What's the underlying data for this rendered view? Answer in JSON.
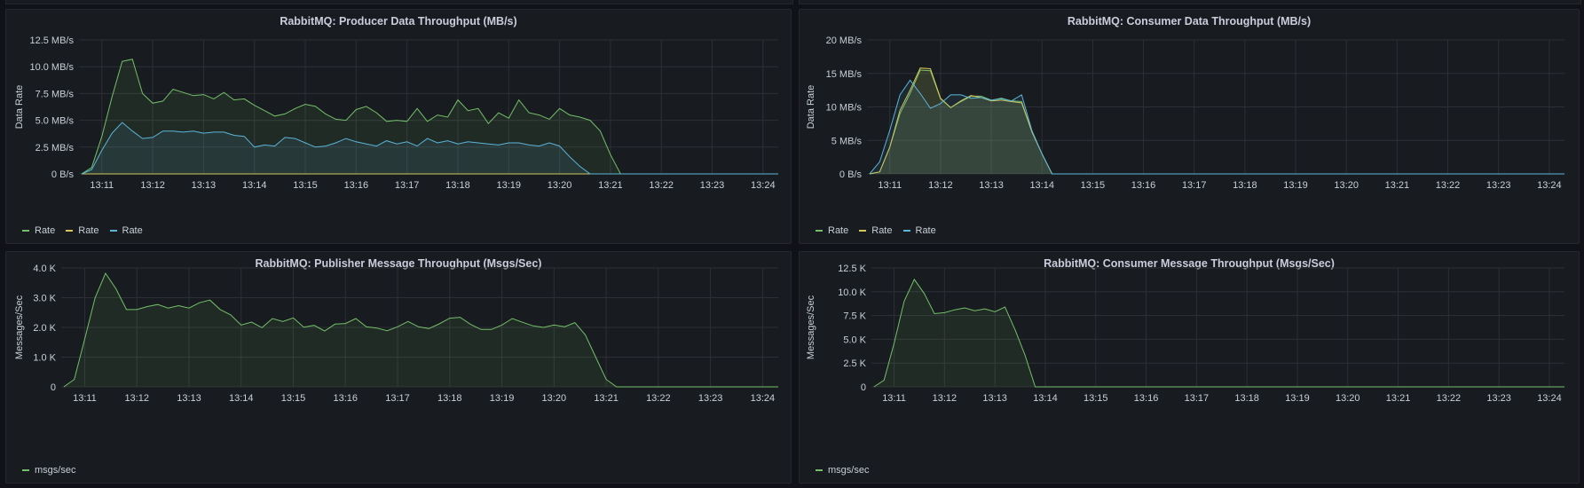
{
  "colors": {
    "green": "#73bf69",
    "yellow": "#d6c75a",
    "blue": "#5bb5d9",
    "grid": "#2c3036"
  },
  "chart_data": [
    {
      "id": "producer",
      "type": "area",
      "title": "RabbitMQ: Producer Data Throughput (MB/s)",
      "ylabel": "Data Rate",
      "yticks": [
        "0 B/s",
        "2.5 MB/s",
        "5.0 MB/s",
        "7.5 MB/s",
        "10.0 MB/s",
        "12.5 MB/s"
      ],
      "ylim": [
        0,
        12.5
      ],
      "xticks": [
        "13:11",
        "13:12",
        "13:13",
        "13:14",
        "13:15",
        "13:16",
        "13:17",
        "13:18",
        "13:19",
        "13:20",
        "13:21",
        "13:22",
        "13:23",
        "13:24"
      ],
      "xlim": [
        10.55,
        24.3
      ],
      "x": [
        10.6,
        10.8,
        11.0,
        11.2,
        11.4,
        11.6,
        11.8,
        12.0,
        12.2,
        12.4,
        12.6,
        12.8,
        13.0,
        13.2,
        13.4,
        13.6,
        13.8,
        14.0,
        14.2,
        14.4,
        14.6,
        14.8,
        15.0,
        15.2,
        15.4,
        15.6,
        15.8,
        16.0,
        16.2,
        16.4,
        16.6,
        16.8,
        17.0,
        17.2,
        17.4,
        17.6,
        17.8,
        18.0,
        18.2,
        18.4,
        18.6,
        18.8,
        19.0,
        19.2,
        19.4,
        19.6,
        19.8,
        20.0,
        20.2,
        20.4,
        20.6,
        20.8,
        21.0,
        21.2,
        21.4,
        21.6,
        21.8,
        22.0,
        22.2,
        22.4,
        22.6,
        22.8,
        23.0,
        23.2,
        23.4,
        23.6,
        23.8,
        24.0,
        24.3
      ],
      "series": [
        {
          "name": "Rate",
          "color": "#73bf69",
          "values": [
            0,
            0.6,
            3.5,
            7.2,
            10.5,
            10.7,
            7.5,
            6.6,
            6.8,
            7.9,
            7.6,
            7.3,
            7.4,
            7.0,
            7.6,
            6.9,
            7.0,
            6.4,
            5.9,
            5.4,
            5.6,
            6.1,
            6.5,
            6.3,
            5.6,
            5.1,
            5.0,
            6.0,
            6.3,
            5.7,
            4.9,
            5.0,
            4.9,
            6.1,
            4.9,
            5.5,
            5.3,
            6.9,
            5.9,
            6.1,
            4.7,
            5.7,
            5.2,
            6.9,
            5.7,
            5.5,
            5.1,
            6.1,
            5.5,
            5.3,
            5.0,
            4.0,
            1.8,
            0,
            0,
            0,
            0,
            0,
            0,
            0,
            0,
            0,
            0,
            0,
            0,
            0,
            0,
            0,
            0
          ]
        },
        {
          "name": "Rate",
          "color": "#d6c75a",
          "values": [
            0,
            0,
            0,
            0,
            0,
            0,
            0,
            0,
            0,
            0,
            0,
            0,
            0,
            0,
            0,
            0,
            0,
            0,
            0,
            0,
            0,
            0,
            0,
            0,
            0,
            0,
            0,
            0,
            0,
            0,
            0,
            0,
            0,
            0,
            0,
            0,
            0,
            0,
            0,
            0,
            0,
            0,
            0,
            0,
            0,
            0,
            0,
            0,
            0,
            0,
            0,
            0,
            0,
            0,
            0,
            0,
            0,
            0,
            0,
            0,
            0,
            0,
            0,
            0,
            0,
            0,
            0,
            0,
            0
          ]
        },
        {
          "name": "Rate",
          "color": "#5bb5d9",
          "values": [
            0,
            0.4,
            2.2,
            3.8,
            4.8,
            4.0,
            3.3,
            3.4,
            4.0,
            4.0,
            3.9,
            4.0,
            3.8,
            3.9,
            3.9,
            3.6,
            3.5,
            2.5,
            2.7,
            2.6,
            3.4,
            3.3,
            2.9,
            2.5,
            2.6,
            2.9,
            3.3,
            3.0,
            2.8,
            2.6,
            3.1,
            2.8,
            3.0,
            2.6,
            3.3,
            2.9,
            3.1,
            2.8,
            3.0,
            2.9,
            2.8,
            2.7,
            2.9,
            2.9,
            2.7,
            2.6,
            2.9,
            2.6,
            1.6,
            0.7,
            0,
            0,
            0,
            0,
            0,
            0,
            0,
            0,
            0,
            0,
            0,
            0,
            0,
            0,
            0,
            0,
            0,
            0,
            0
          ]
        }
      ],
      "legend": [
        "Rate",
        "Rate",
        "Rate"
      ],
      "grid": true
    },
    {
      "id": "consumer",
      "type": "area",
      "title": "RabbitMQ: Consumer Data Throughput (MB/s)",
      "ylabel": "Data Rate",
      "yticks": [
        "0 B/s",
        "5 MB/s",
        "10 MB/s",
        "15 MB/s",
        "20 MB/s"
      ],
      "ylim": [
        0,
        20
      ],
      "xticks": [
        "13:11",
        "13:12",
        "13:13",
        "13:14",
        "13:15",
        "13:16",
        "13:17",
        "13:18",
        "13:19",
        "13:20",
        "13:21",
        "13:22",
        "13:23",
        "13:24"
      ],
      "xlim": [
        10.55,
        24.3
      ],
      "x": [
        10.6,
        10.8,
        11.0,
        11.2,
        11.4,
        11.6,
        11.8,
        12.0,
        12.2,
        12.4,
        12.6,
        12.8,
        13.0,
        13.2,
        13.4,
        13.6,
        13.8,
        14.0,
        14.2,
        14.5,
        15.0,
        16.0,
        17.0,
        18.0,
        19.0,
        20.0,
        21.0,
        22.0,
        23.0,
        24.0,
        24.3
      ],
      "series": [
        {
          "name": "Rate",
          "color": "#73bf69",
          "values": [
            0,
            0.3,
            4.0,
            9.0,
            12.0,
            15.5,
            15.4,
            11.2,
            9.9,
            10.8,
            11.6,
            11.6,
            11.0,
            11.3,
            10.9,
            10.8,
            6.3,
            3.0,
            0,
            0,
            0,
            0,
            0,
            0,
            0,
            0,
            0,
            0,
            0,
            0,
            0
          ]
        },
        {
          "name": "Rate",
          "color": "#d6c75a",
          "values": [
            0,
            0.3,
            4.0,
            9.5,
            12.5,
            15.8,
            15.7,
            11.3,
            9.9,
            10.9,
            11.7,
            11.4,
            10.9,
            11.0,
            10.8,
            10.6,
            6.3,
            3.0,
            0,
            0,
            0,
            0,
            0,
            0,
            0,
            0,
            0,
            0,
            0,
            0,
            0
          ]
        },
        {
          "name": "Rate",
          "color": "#5bb5d9",
          "values": [
            0,
            1.8,
            6.5,
            11.8,
            14.0,
            12.0,
            9.8,
            10.5,
            11.8,
            11.8,
            11.3,
            11.4,
            11.0,
            11.2,
            10.9,
            11.8,
            6.5,
            3.0,
            0,
            0,
            0,
            0,
            0,
            0,
            0,
            0,
            0,
            0,
            0,
            0,
            0
          ]
        }
      ],
      "legend": [
        "Rate",
        "Rate",
        "Rate"
      ],
      "grid": true
    },
    {
      "id": "publisher-msgs",
      "type": "area",
      "title": "RabbitMQ: Publisher Message Throughput (Msgs/Sec)",
      "ylabel": "Messages/Sec",
      "yticks": [
        "0",
        "1.0 K",
        "2.0 K",
        "3.0 K",
        "4.0 K"
      ],
      "ylim": [
        0,
        4000
      ],
      "xticks": [
        "13:11",
        "13:12",
        "13:13",
        "13:14",
        "13:15",
        "13:16",
        "13:17",
        "13:18",
        "13:19",
        "13:20",
        "13:21",
        "13:22",
        "13:23",
        "13:24"
      ],
      "xlim": [
        10.55,
        24.3
      ],
      "x": [
        10.6,
        10.8,
        11.0,
        11.2,
        11.4,
        11.6,
        11.8,
        12.0,
        12.2,
        12.4,
        12.6,
        12.8,
        13.0,
        13.2,
        13.4,
        13.6,
        13.8,
        14.0,
        14.2,
        14.4,
        14.6,
        14.8,
        15.0,
        15.2,
        15.4,
        15.6,
        15.8,
        16.0,
        16.2,
        16.4,
        16.6,
        16.8,
        17.0,
        17.2,
        17.4,
        17.6,
        17.8,
        18.0,
        18.2,
        18.4,
        18.6,
        18.8,
        19.0,
        19.2,
        19.4,
        19.6,
        19.8,
        20.0,
        20.2,
        20.4,
        20.6,
        20.8,
        21.0,
        21.2,
        21.4,
        21.6,
        21.8,
        22.0,
        22.2,
        22.4,
        22.6,
        22.8,
        23.0,
        23.2,
        23.4,
        23.6,
        23.8,
        24.0,
        24.3
      ],
      "series": [
        {
          "name": "msgs/sec",
          "color": "#73bf69",
          "values": [
            0,
            250,
            1600,
            3000,
            3820,
            3300,
            2600,
            2600,
            2700,
            2770,
            2650,
            2730,
            2650,
            2830,
            2920,
            2600,
            2420,
            2080,
            2180,
            1990,
            2300,
            2200,
            2320,
            2010,
            2070,
            1880,
            2110,
            2130,
            2300,
            2020,
            1980,
            1890,
            2020,
            2200,
            2020,
            1960,
            2120,
            2310,
            2340,
            2100,
            1930,
            1930,
            2080,
            2300,
            2170,
            2050,
            2000,
            2080,
            2020,
            2160,
            1750,
            1000,
            250,
            0,
            0,
            0,
            0,
            0,
            0,
            0,
            0,
            0,
            0,
            0,
            0,
            0,
            0,
            0,
            0
          ]
        }
      ],
      "legend": [
        "msgs/sec"
      ],
      "grid": true
    },
    {
      "id": "consumer-msgs",
      "type": "area",
      "title": "RabbitMQ: Consumer Message Throughput (Msgs/Sec)",
      "ylabel": "Messages/Sec",
      "yticks": [
        "0",
        "2.5 K",
        "5.0 K",
        "7.5 K",
        "10.0 K",
        "12.5 K"
      ],
      "ylim": [
        0,
        12500
      ],
      "xticks": [
        "13:11",
        "13:12",
        "13:13",
        "13:14",
        "13:15",
        "13:16",
        "13:17",
        "13:18",
        "13:19",
        "13:20",
        "13:21",
        "13:22",
        "13:23",
        "13:24"
      ],
      "xlim": [
        10.55,
        24.3
      ],
      "x": [
        10.6,
        10.8,
        11.0,
        11.2,
        11.4,
        11.6,
        11.8,
        12.0,
        12.2,
        12.4,
        12.6,
        12.8,
        13.0,
        13.2,
        13.4,
        13.6,
        13.8,
        14.0,
        14.2,
        14.5,
        15.0,
        16.0,
        17.0,
        18.0,
        19.0,
        20.0,
        21.0,
        22.0,
        23.0,
        24.0,
        24.3
      ],
      "series": [
        {
          "name": "msgs/sec",
          "color": "#73bf69",
          "values": [
            0,
            700,
            4600,
            9000,
            11300,
            9800,
            7700,
            7800,
            8100,
            8300,
            8000,
            8200,
            7900,
            8400,
            6000,
            3300,
            0,
            0,
            0,
            0,
            0,
            0,
            0,
            0,
            0,
            0,
            0,
            0,
            0,
            0,
            0
          ]
        }
      ],
      "legend": [
        "msgs/sec"
      ],
      "grid": true
    }
  ]
}
